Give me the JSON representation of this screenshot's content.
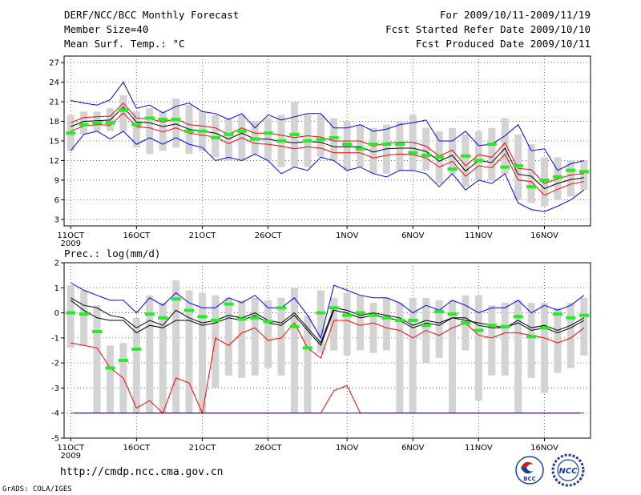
{
  "header": {
    "title": "DERF/NCC/BCC Monthly Forecast",
    "member_size": "Member Size=40",
    "variable": "Mean Surf. Temp.: °C",
    "forecast_period": "For 2009/10/11-2009/11/19",
    "start_date": "Fcst Started Refer Date 2009/10/10",
    "produced_date": "Fcst Produced Date 2009/10/11"
  },
  "footer": {
    "url": "http://cmdp.ncc.cma.gov.cn",
    "grads": "GrADS: COLA/IGES",
    "logo_bcc": "BCC",
    "logo_ncc": "NCC"
  },
  "colors": {
    "ensemble_mean": "#000000",
    "spread": "#ff0000",
    "extreme": "#0000ff",
    "observed": "#22ee22",
    "box": "#d3d3d3"
  },
  "chart_data": [
    {
      "type": "line",
      "title": "Mean Surf. Temp.: °C",
      "ylim": [
        2,
        28
      ],
      "yticks": [
        3,
        6,
        9,
        12,
        15,
        18,
        21,
        24,
        27
      ],
      "xlim": [
        0.5,
        40.5
      ],
      "xticks": [
        {
          "day": 1,
          "label": "11OCT"
        },
        {
          "day": 6,
          "label": "16OCT"
        },
        {
          "day": 11,
          "label": "21OCT"
        },
        {
          "day": 16,
          "label": "26OCT"
        },
        {
          "day": 22,
          "label": "1NOV"
        },
        {
          "day": 27,
          "label": "6NOV"
        },
        {
          "day": 32,
          "label": "11NOV"
        },
        {
          "day": 37,
          "label": "16NOV"
        }
      ],
      "year_label": "2009",
      "x_days": [
        1,
        2,
        3,
        4,
        5,
        6,
        7,
        8,
        9,
        10,
        11,
        12,
        13,
        14,
        15,
        16,
        17,
        18,
        19,
        20,
        21,
        22,
        23,
        24,
        25,
        26,
        27,
        28,
        29,
        30,
        31,
        32,
        33,
        34,
        35,
        36,
        37,
        38,
        39,
        40
      ],
      "series": [
        {
          "name": "max",
          "color": "#0000ff",
          "values": [
            21.2,
            20.8,
            20.5,
            21.3,
            24.0,
            20.0,
            20.5,
            19.3,
            20.3,
            20.8,
            19.5,
            19.2,
            18.3,
            19.2,
            17.0,
            19.0,
            18.2,
            18.7,
            19.2,
            19.2,
            17.0,
            17.0,
            17.5,
            16.5,
            16.8,
            17.5,
            17.8,
            18.2,
            15.0,
            15.0,
            16.5,
            14.3,
            14.5,
            15.8,
            17.5,
            13.5,
            13.8,
            10.5,
            11.5,
            12.0
          ]
        },
        {
          "name": "upper",
          "color": "#ff0000",
          "values": [
            17.8,
            18.6,
            18.7,
            18.8,
            20.8,
            18.5,
            18.4,
            17.9,
            18.4,
            17.5,
            17.3,
            17.0,
            16.0,
            17.0,
            16.2,
            16.2,
            15.9,
            15.5,
            15.8,
            15.6,
            15.0,
            15.0,
            15.0,
            14.2,
            14.7,
            14.8,
            14.8,
            14.2,
            12.7,
            13.6,
            11.2,
            12.9,
            12.5,
            14.7,
            10.8,
            10.6,
            8.5,
            9.2,
            9.8,
            10.0
          ]
        },
        {
          "name": "mean",
          "color": "#000000",
          "values": [
            17.2,
            18.0,
            18.1,
            18.2,
            20.2,
            17.9,
            17.8,
            17.2,
            17.6,
            16.8,
            16.5,
            16.2,
            15.3,
            16.2,
            15.3,
            15.3,
            14.9,
            14.7,
            14.9,
            14.8,
            14.1,
            14.1,
            14.1,
            13.3,
            13.8,
            13.9,
            13.9,
            13.4,
            11.9,
            12.8,
            10.4,
            12.0,
            11.7,
            13.9,
            9.9,
            9.6,
            7.7,
            8.5,
            9.1,
            9.4
          ]
        },
        {
          "name": "lower",
          "color": "#ff0000",
          "values": [
            16.5,
            17.3,
            17.5,
            17.4,
            19.3,
            17.2,
            17.0,
            16.4,
            17.0,
            16.2,
            15.9,
            15.6,
            14.6,
            15.5,
            14.6,
            14.5,
            14.2,
            13.8,
            14.1,
            13.9,
            13.2,
            13.2,
            13.2,
            12.4,
            12.8,
            13.0,
            12.9,
            12.4,
            11.0,
            11.9,
            9.6,
            11.2,
            10.9,
            13.0,
            9.0,
            8.8,
            6.7,
            7.6,
            8.4,
            8.8
          ]
        },
        {
          "name": "min",
          "color": "#0000ff",
          "values": [
            13.5,
            16.0,
            16.5,
            15.3,
            16.5,
            14.5,
            15.5,
            14.5,
            15.5,
            14.5,
            14.0,
            12.0,
            12.5,
            12.0,
            13.0,
            12.0,
            10.0,
            11.0,
            10.5,
            12.5,
            12.0,
            10.5,
            11.0,
            10.0,
            9.5,
            10.5,
            10.5,
            10.0,
            8.0,
            10.0,
            7.5,
            9.0,
            8.5,
            10.0,
            5.5,
            4.5,
            4.2,
            5.0,
            6.0,
            7.5
          ]
        }
      ],
      "boxes_low": [
        13.5,
        16.0,
        16.5,
        16.5,
        16.5,
        14.0,
        13.0,
        13.5,
        14.0,
        13.0,
        13.5,
        12.5,
        12.0,
        12.0,
        13.0,
        12.0,
        11.0,
        11.0,
        11.0,
        12.5,
        12.0,
        10.5,
        11.0,
        10.0,
        10.0,
        10.5,
        10.5,
        10.5,
        8.5,
        10.0,
        8.0,
        9.0,
        9.0,
        10.0,
        6.0,
        5.5,
        5.0,
        6.0,
        6.5,
        7.5
      ],
      "boxes_high": [
        19.0,
        19.5,
        19.5,
        20.0,
        22.0,
        19.5,
        20.0,
        19.5,
        21.5,
        20.5,
        19.5,
        19.0,
        18.5,
        19.0,
        18.0,
        18.5,
        19.0,
        21.0,
        19.0,
        19.0,
        18.5,
        18.0,
        17.5,
        17.0,
        17.5,
        18.0,
        19.0,
        17.0,
        16.5,
        17.0,
        16.0,
        16.5,
        17.0,
        18.5,
        16.0,
        14.5,
        12.5,
        12.5,
        12.0,
        12.0
      ],
      "observed": [
        16.2,
        17.5,
        17.8,
        17.8,
        19.7,
        17.5,
        18.5,
        18.3,
        18.3,
        16.5,
        16.5,
        15.5,
        16.0,
        16.5,
        15.3,
        16.2,
        15.0,
        16.0,
        15.0,
        15.2,
        15.5,
        14.5,
        13.8,
        14.5,
        14.5,
        14.5,
        13.2,
        12.8,
        12.5,
        10.7,
        12.7,
        12.0,
        14.5,
        11.0,
        11.2,
        8.0,
        9.0,
        9.5,
        10.5,
        10.3
      ]
    },
    {
      "type": "line",
      "title": "Prec.: log(mm/d)",
      "ylim": [
        -5,
        2
      ],
      "yticks": [
        -5,
        -4,
        -3,
        -2,
        -1,
        0,
        1,
        2
      ],
      "xlim": [
        0.5,
        40.5
      ],
      "xticks": [
        {
          "day": 1,
          "label": "11OCT"
        },
        {
          "day": 6,
          "label": "16OCT"
        },
        {
          "day": 11,
          "label": "21OCT"
        },
        {
          "day": 16,
          "label": "26OCT"
        },
        {
          "day": 22,
          "label": "1NOV"
        },
        {
          "day": 27,
          "label": "6NOV"
        },
        {
          "day": 32,
          "label": "11NOV"
        },
        {
          "day": 37,
          "label": "16NOV"
        }
      ],
      "year_label": "2009",
      "x_days": [
        1,
        2,
        3,
        4,
        5,
        6,
        7,
        8,
        9,
        10,
        11,
        12,
        13,
        14,
        15,
        16,
        17,
        18,
        19,
        20,
        21,
        22,
        23,
        24,
        25,
        26,
        27,
        28,
        29,
        30,
        31,
        32,
        33,
        34,
        35,
        36,
        37,
        38,
        39,
        40
      ],
      "series": [
        {
          "name": "max",
          "color": "#0000ff",
          "values": [
            1.2,
            0.9,
            0.7,
            0.5,
            0.5,
            0.0,
            0.6,
            0.3,
            0.8,
            0.4,
            0.2,
            0.2,
            0.6,
            0.4,
            0.7,
            0.2,
            0.2,
            0.6,
            -0.1,
            -1.0,
            1.1,
            0.9,
            0.7,
            0.6,
            0.6,
            0.4,
            0.0,
            0.3,
            0.1,
            0.5,
            0.3,
            0.0,
            0.2,
            0.2,
            0.5,
            0.0,
            0.3,
            0.1,
            0.3,
            0.7
          ]
        },
        {
          "name": "upper",
          "color": "#000000",
          "values": [
            0.6,
            0.3,
            0.2,
            -0.1,
            -0.2,
            -0.6,
            -0.3,
            -0.5,
            0.1,
            -0.2,
            -0.4,
            -0.3,
            -0.1,
            -0.2,
            0.0,
            -0.3,
            -0.4,
            0.0,
            -0.6,
            -1.2,
            0.2,
            0.1,
            -0.1,
            0.0,
            -0.1,
            -0.2,
            -0.5,
            -0.3,
            -0.4,
            -0.2,
            -0.3,
            -0.4,
            -0.5,
            -0.6,
            -0.3,
            -0.6,
            -0.5,
            -0.7,
            -0.5,
            -0.2
          ]
        },
        {
          "name": "mean",
          "color": "#000000",
          "values": [
            0.5,
            0.1,
            -0.2,
            -0.3,
            -0.3,
            -0.8,
            -0.5,
            -0.6,
            -0.3,
            -0.3,
            -0.5,
            -0.4,
            -0.2,
            -0.3,
            -0.1,
            -0.4,
            -0.5,
            -0.1,
            -0.7,
            -1.3,
            0.1,
            0.0,
            -0.2,
            -0.1,
            -0.2,
            -0.3,
            -0.6,
            -0.4,
            -0.5,
            -0.2,
            -0.2,
            -0.5,
            -0.6,
            -0.6,
            -0.4,
            -0.7,
            -0.6,
            -0.8,
            -0.6,
            -0.3
          ]
        },
        {
          "name": "lower",
          "color": "#ff0000",
          "values": [
            -1.2,
            -1.3,
            -1.4,
            -2.2,
            -2.6,
            -3.8,
            -3.5,
            -4.0,
            -2.6,
            -2.8,
            -4.0,
            -1.0,
            -1.3,
            -0.8,
            -0.6,
            -1.1,
            -1.0,
            -0.4,
            -1.4,
            -1.8,
            -0.3,
            -0.3,
            -0.5,
            -0.4,
            -0.6,
            -0.7,
            -1.0,
            -0.7,
            -0.9,
            -0.6,
            -0.4,
            -0.9,
            -1.0,
            -0.8,
            -0.8,
            -0.9,
            -1.0,
            -1.2,
            -1.0,
            -0.6
          ]
        },
        {
          "name": "min",
          "color": "#ff0000",
          "values": [
            -4.0,
            -4.0,
            -4.0,
            -4.0,
            -4.0,
            -4.0,
            -4.0,
            -4.0,
            -4.0,
            -4.0,
            -4.0,
            -4.0,
            -4.0,
            -4.0,
            -4.0,
            -4.0,
            -4.0,
            -4.0,
            -4.0,
            -4.0,
            -3.1,
            -2.9,
            -4.0,
            -4.0,
            -4.0,
            -4.0,
            -4.0,
            -4.0,
            -4.0,
            -4.0,
            -4.0,
            -4.0,
            -4.0,
            -4.0,
            -4.0,
            -4.0,
            -4.0,
            -4.0,
            -4.0,
            -4.0
          ]
        }
      ],
      "boxes_low": [
        -1.4,
        -1.3,
        -4.0,
        -4.0,
        -4.0,
        -4.0,
        -4.0,
        -4.0,
        -4.0,
        -4.0,
        -4.0,
        -3.0,
        -2.5,
        -2.6,
        -2.5,
        -2.2,
        -2.5,
        -4.0,
        -4.0,
        -1.6,
        -1.5,
        -1.7,
        -1.5,
        -1.6,
        -1.5,
        -4.0,
        -4.0,
        -2.0,
        -1.8,
        -4.0,
        -1.5,
        -3.5,
        -2.5,
        -2.5,
        -4.0,
        -2.6,
        -3.2,
        -2.4,
        -2.2,
        -1.7
      ],
      "boxes_high": [
        1.1,
        0.9,
        0.3,
        -1.3,
        -1.2,
        -0.2,
        0.7,
        0.4,
        1.3,
        0.9,
        0.8,
        0.7,
        0.6,
        0.5,
        0.6,
        0.5,
        0.6,
        1.0,
        -0.1,
        0.9,
        0.6,
        0.8,
        0.7,
        0.4,
        0.6,
        0.4,
        0.6,
        0.6,
        0.5,
        0.5,
        0.7,
        0.7,
        0.3,
        0.4,
        0.5,
        0.4,
        0.4,
        0.2,
        0.4,
        0.6
      ],
      "observed": [
        0.0,
        -0.05,
        -0.75,
        -2.2,
        -1.9,
        -1.45,
        -0.05,
        -0.2,
        0.55,
        0.1,
        -0.15,
        -0.3,
        0.35,
        -0.25,
        -0.2,
        -0.35,
        0.2,
        -0.55,
        -1.4,
        0.0,
        0.2,
        -0.1,
        0.0,
        -0.1,
        -0.2,
        -0.3,
        -0.3,
        -0.5,
        0.05,
        -0.05,
        -0.4,
        -0.7,
        -0.5,
        -0.55,
        -0.15,
        -0.95,
        -0.6,
        -0.05,
        -0.2,
        -0.1
      ]
    }
  ]
}
